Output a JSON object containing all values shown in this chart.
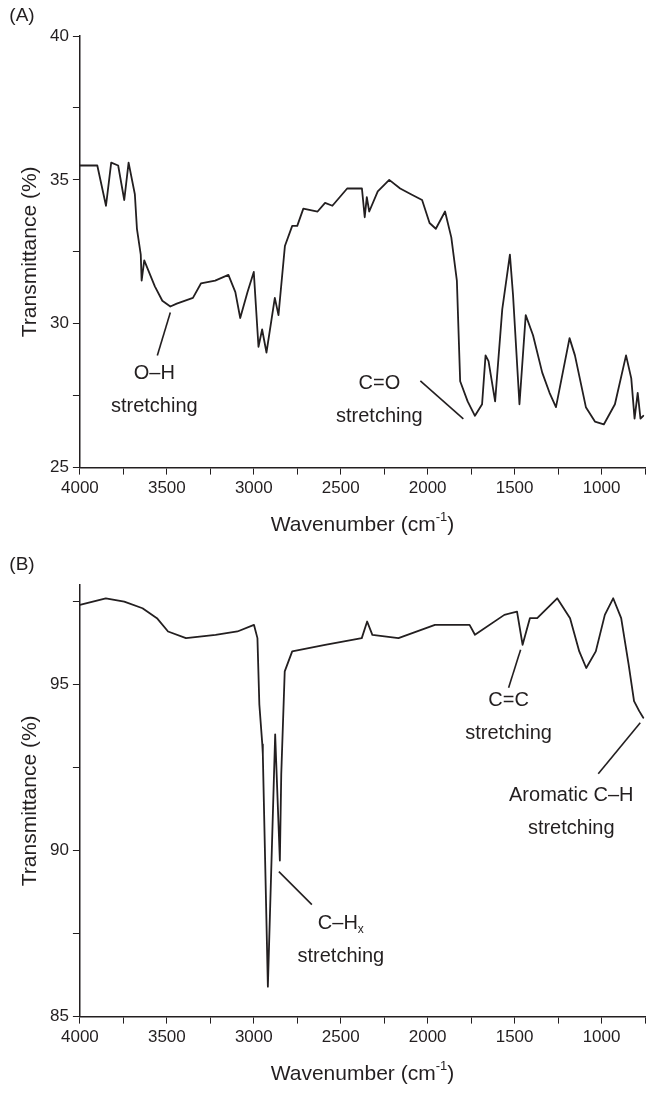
{
  "chart_data": [
    {
      "type": "line",
      "title": "(A)",
      "xlabel": "Wavenumber (cm$^{-1}$)",
      "ylabel": "Transmittance (%)",
      "xlim": [
        4000,
        750
      ],
      "ylim": [
        25,
        40
      ],
      "xticks": [
        4000,
        {
          "value": 3750,
          "label": null
        },
        3500,
        {
          "value": 3250,
          "label": null
        },
        3000,
        {
          "value": 2750,
          "label": null
        },
        2500,
        {
          "value": 2250,
          "label": null
        },
        2000,
        {
          "value": 1750,
          "label": null
        },
        1500,
        {
          "value": 1250,
          "label": null
        },
        1000,
        {
          "value": 750,
          "label": null
        }
      ],
      "yticks": [
        25,
        {
          "value": 27.5,
          "label": null
        },
        30,
        {
          "value": 32.5,
          "label": null
        },
        35,
        {
          "value": 37.5,
          "label": null
        },
        40
      ],
      "grid": false,
      "legend": false,
      "marker": "none",
      "line_style": "solid",
      "series": [
        {
          "color": "#231f20",
          "x": [
            4000,
            3900,
            3850,
            3820,
            3780,
            3745,
            3720,
            3684,
            3672,
            3650,
            3645,
            3630,
            3569,
            3526,
            3480,
            3443,
            3350,
            3304,
            3222,
            3146,
            3106,
            3078,
            3036,
            3000,
            2973,
            2952,
            2927,
            2879,
            2858,
            2821,
            2779,
            2750,
            2715,
            2633,
            2590,
            2548,
            2463,
            2378,
            2362,
            2350,
            2336,
            2287,
            2221,
            2158,
            2096,
            2032,
            1989,
            1953,
            1900,
            1864,
            1832,
            1813,
            1770,
            1728,
            1687,
            1667,
            1650,
            1612,
            1571,
            1527,
            1509,
            1472,
            1436,
            1394,
            1341,
            1299,
            1262,
            1184,
            1153,
            1090,
            1038,
            987,
            923,
            859,
            829,
            810,
            792,
            776,
            760
          ],
          "values": [
            35.5,
            35.5,
            34.1,
            35.6,
            35.5,
            34.3,
            35.6,
            34.5,
            33.3,
            32.4,
            31.5,
            32.2,
            31.3,
            30.8,
            30.6,
            30.7,
            30.9,
            31.4,
            31.5,
            31.7,
            31.1,
            30.2,
            31.1,
            31.8,
            29.2,
            29.8,
            29.0,
            30.9,
            30.3,
            32.7,
            33.4,
            33.4,
            34.0,
            33.9,
            34.2,
            34.1,
            34.7,
            34.7,
            33.7,
            34.4,
            33.9,
            34.6,
            35.0,
            34.7,
            34.5,
            34.3,
            33.5,
            33.3,
            33.9,
            33.0,
            31.5,
            28.0,
            27.3,
            26.8,
            27.2,
            28.9,
            28.7,
            27.3,
            30.5,
            32.4,
            31.0,
            27.2,
            30.3,
            29.6,
            28.3,
            27.6,
            27.1,
            29.5,
            28.9,
            27.1,
            26.6,
            26.5,
            27.2,
            28.9,
            28.1,
            26.7,
            27.6,
            26.7,
            26.8
          ]
        }
      ],
      "annotations": [
        {
          "text": "O–H stretching",
          "x": 3480,
          "y": 30.6
        },
        {
          "text": "C=O stretching",
          "x": 1720,
          "y": 26.8
        }
      ]
    },
    {
      "type": "line",
      "title": "(B)",
      "xlabel": "Wavenumber (cm$^{-1}$)",
      "ylabel": "Transmittance (%)",
      "xlim": [
        4000,
        750
      ],
      "ylim": [
        85,
        98
      ],
      "xticks": [
        4000,
        {
          "value": 3750,
          "label": null
        },
        3500,
        {
          "value": 3250,
          "label": null
        },
        3000,
        {
          "value": 2750,
          "label": null
        },
        2500,
        {
          "value": 2250,
          "label": null
        },
        2000,
        {
          "value": 1750,
          "label": null
        },
        1500,
        {
          "value": 1250,
          "label": null
        },
        1000,
        {
          "value": 750,
          "label": null
        }
      ],
      "yticks": [
        85,
        {
          "value": 87.5,
          "label": null
        },
        90,
        {
          "value": 92.5,
          "label": null
        },
        95,
        {
          "value": 97.5,
          "label": null
        }
      ],
      "grid": false,
      "legend": false,
      "marker": "none",
      "line_style": "solid",
      "series": [
        {
          "color": "#231f20",
          "x": [
            4000,
            3851,
            3745,
            3640,
            3557,
            3493,
            3390,
            3220,
            3094,
            2999,
            2979,
            2968,
            2951,
            2948,
            2919,
            2877,
            2850,
            2842,
            2822,
            2779,
            2590,
            2379,
            2348,
            2318,
            2168,
            1958,
            1759,
            1728,
            1559,
            1486,
            1454,
            1412,
            1370,
            1255,
            1181,
            1128,
            1088,
            1033,
            981,
            933,
            887,
            844,
            813,
            783,
            760
          ],
          "values": [
            97.4,
            97.6,
            97.5,
            97.3,
            97.0,
            96.6,
            96.4,
            96.5,
            96.6,
            96.8,
            96.4,
            94.4,
            93.2,
            92.9,
            85.9,
            93.5,
            89.7,
            92.3,
            95.4,
            96.0,
            96.2,
            96.4,
            96.9,
            96.5,
            96.4,
            96.8,
            96.8,
            96.5,
            97.1,
            97.2,
            96.2,
            97.0,
            97.0,
            97.6,
            97.0,
            96.0,
            95.5,
            96.0,
            97.1,
            97.6,
            97.0,
            95.6,
            94.5,
            94.2,
            94.0
          ]
        }
      ],
      "annotations": [
        {
          "text": "C–H$_{x}$ stretching",
          "x": 2850,
          "y": 89.7
        },
        {
          "text": "C=C stretching",
          "x": 1454,
          "y": 96.2
        },
        {
          "text": "Aromatic C–H stretching",
          "x": 760,
          "y": 94.0
        }
      ]
    }
  ]
}
